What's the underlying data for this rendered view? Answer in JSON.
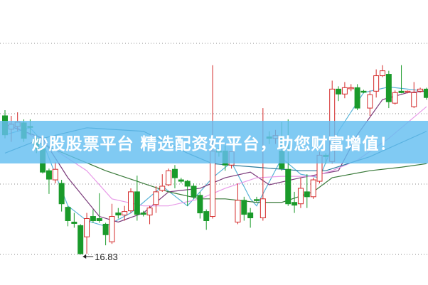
{
  "banner": {
    "text": "炒股股票平台 精选配资好平台，助您财富增值！"
  },
  "colors": {
    "up": "#d42a2a",
    "down": "#1a9a2a",
    "grid": "#888888",
    "banner": "#64bef0"
  },
  "chart_data": {
    "type": "candlestick",
    "title": "",
    "grid": true,
    "ylim": [
      16.5,
      20.4
    ],
    "gridlines": [
      16.83,
      17.83,
      18.83,
      19.83
    ],
    "low_annotation": {
      "index": 12,
      "value": 16.83,
      "label": "16.83"
    },
    "candles_ohlc": [
      [
        18.8,
        18.88,
        18.48,
        18.53
      ],
      [
        18.61,
        18.8,
        18.43,
        18.68
      ],
      [
        18.65,
        18.85,
        18.58,
        18.71
      ],
      [
        18.7,
        18.75,
        18.43,
        18.48
      ],
      [
        18.65,
        18.75,
        18.53,
        18.64
      ],
      [
        18.48,
        18.53,
        18.27,
        18.33
      ],
      [
        18.33,
        18.38,
        17.98,
        18.0
      ],
      [
        18.02,
        18.05,
        17.69,
        17.9
      ],
      [
        17.89,
        18.14,
        17.84,
        18.04
      ],
      [
        17.84,
        17.89,
        17.44,
        17.55
      ],
      [
        17.5,
        17.52,
        17.23,
        17.31
      ],
      [
        17.29,
        17.42,
        17.21,
        17.27
      ],
      [
        17.24,
        17.26,
        16.83,
        16.84
      ],
      [
        17.08,
        17.42,
        16.84,
        17.34
      ],
      [
        17.37,
        17.47,
        17.28,
        17.31
      ],
      [
        17.34,
        17.7,
        17.28,
        17.31
      ],
      [
        17.26,
        17.28,
        16.96,
        17.11
      ],
      [
        17.01,
        17.55,
        16.98,
        17.37
      ],
      [
        17.42,
        17.49,
        17.34,
        17.39
      ],
      [
        17.39,
        17.52,
        17.31,
        17.44
      ],
      [
        17.45,
        17.77,
        17.42,
        17.72
      ],
      [
        17.72,
        17.95,
        17.31,
        17.4
      ],
      [
        17.42,
        17.45,
        17.37,
        17.4
      ],
      [
        17.39,
        17.52,
        17.26,
        17.49
      ],
      [
        17.54,
        17.8,
        17.42,
        17.72
      ],
      [
        17.74,
        17.97,
        17.72,
        17.8
      ],
      [
        17.82,
        18.05,
        17.8,
        18.02
      ],
      [
        18.04,
        18.1,
        17.77,
        17.92
      ],
      [
        17.89,
        17.92,
        17.84,
        17.87
      ],
      [
        17.87,
        17.89,
        17.52,
        17.8
      ],
      [
        17.8,
        17.84,
        17.62,
        17.65
      ],
      [
        17.67,
        17.72,
        17.34,
        17.42
      ],
      [
        17.44,
        17.47,
        17.18,
        17.31
      ],
      [
        17.37,
        19.52,
        17.34,
        18.3
      ],
      [
        18.3,
        18.34,
        18.22,
        18.29
      ],
      [
        18.3,
        18.38,
        18.02,
        18.1
      ],
      [
        18.1,
        18.29,
        18.05,
        18.29
      ],
      [
        17.29,
        17.84,
        17.26,
        17.6
      ],
      [
        17.6,
        17.65,
        17.31,
        17.4
      ],
      [
        17.42,
        17.49,
        17.21,
        17.35
      ],
      [
        17.61,
        17.65,
        17.57,
        17.6
      ],
      [
        17.35,
        18.91,
        17.31,
        17.62
      ],
      [
        18.5,
        18.58,
        18.4,
        18.48
      ],
      [
        18.48,
        18.6,
        18.4,
        18.52
      ],
      [
        18.3,
        18.71,
        18.02,
        18.05
      ],
      [
        18.04,
        18.75,
        17.52,
        17.55
      ],
      [
        17.57,
        17.72,
        17.42,
        17.53
      ],
      [
        17.55,
        17.92,
        17.49,
        17.77
      ],
      [
        17.72,
        17.97,
        17.49,
        17.65
      ],
      [
        17.65,
        17.92,
        17.62,
        17.89
      ],
      [
        17.87,
        18.29,
        17.84,
        18.24
      ],
      [
        18.24,
        18.27,
        18.12,
        18.22
      ],
      [
        18.15,
        19.3,
        18.12,
        19.18
      ],
      [
        19.18,
        19.22,
        19.01,
        19.11
      ],
      [
        19.11,
        19.28,
        19.05,
        19.2
      ],
      [
        19.19,
        19.25,
        19.15,
        19.2
      ],
      [
        19.2,
        19.25,
        18.88,
        18.91
      ],
      [
        19.15,
        19.17,
        19.12,
        19.14
      ],
      [
        18.91,
        19.16,
        18.8,
        19.1
      ],
      [
        19.15,
        19.46,
        19.06,
        19.37
      ],
      [
        19.37,
        19.52,
        19.35,
        19.44
      ],
      [
        19.39,
        19.44,
        18.91,
        19.0
      ],
      [
        18.98,
        19.16,
        18.96,
        19.13
      ],
      [
        19.15,
        19.52,
        19.12,
        19.13
      ],
      [
        19.14,
        19.16,
        19.12,
        19.15
      ],
      [
        18.93,
        19.28,
        18.91,
        19.13
      ],
      [
        19.15,
        19.2,
        19.13,
        19.18
      ],
      [
        19.18,
        19.2,
        19.03,
        19.06
      ]
    ],
    "moving_averages": [
      {
        "color": "#5ab4d8",
        "points": [
          [
            0,
            18.53
          ],
          [
            4,
            18.63
          ],
          [
            6,
            18.43
          ],
          [
            8,
            17.97
          ],
          [
            10,
            17.52
          ],
          [
            13,
            17.31
          ],
          [
            16,
            17.23
          ],
          [
            20,
            17.42
          ],
          [
            22,
            17.57
          ],
          [
            25,
            17.8
          ],
          [
            29,
            17.52
          ],
          [
            33,
            17.92
          ],
          [
            36,
            18.14
          ],
          [
            39,
            17.62
          ],
          [
            40,
            17.52
          ],
          [
            44,
            18.2
          ],
          [
            47,
            17.97
          ],
          [
            50,
            17.92
          ],
          [
            53,
            18.58
          ],
          [
            57,
            19.13
          ],
          [
            61,
            19.21
          ],
          [
            67,
            19.15
          ]
        ]
      },
      {
        "color": "#7a3a7a",
        "points": [
          [
            0,
            18.68
          ],
          [
            6,
            18.48
          ],
          [
            10,
            17.92
          ],
          [
            15,
            17.37
          ],
          [
            18,
            17.29
          ],
          [
            22,
            17.42
          ],
          [
            26,
            17.72
          ],
          [
            31,
            17.77
          ],
          [
            35,
            17.92
          ],
          [
            39,
            18.0
          ],
          [
            42,
            17.82
          ],
          [
            47,
            17.92
          ],
          [
            50,
            17.97
          ],
          [
            53,
            18.02
          ],
          [
            56,
            18.53
          ],
          [
            60,
            19.03
          ],
          [
            64,
            19.13
          ],
          [
            67,
            19.15
          ]
        ]
      },
      {
        "color": "#e89ae8",
        "points": [
          [
            0,
            18.73
          ],
          [
            6,
            18.43
          ],
          [
            13,
            18.02
          ],
          [
            17,
            17.62
          ],
          [
            22,
            17.52
          ],
          [
            26,
            17.52
          ],
          [
            31,
            17.62
          ],
          [
            35,
            17.77
          ],
          [
            40,
            17.92
          ],
          [
            44,
            17.94
          ],
          [
            49,
            17.94
          ],
          [
            52,
            18.02
          ],
          [
            56,
            18.17
          ],
          [
            61,
            18.48
          ],
          [
            67,
            18.93
          ]
        ]
      },
      {
        "color": "#3a7a3a",
        "points": [
          [
            5,
            18.43
          ],
          [
            16,
            18.02
          ],
          [
            22,
            17.84
          ],
          [
            26,
            17.72
          ],
          [
            31,
            17.62
          ],
          [
            35,
            17.62
          ],
          [
            40,
            17.57
          ],
          [
            44,
            17.57
          ],
          [
            49,
            17.72
          ],
          [
            52,
            17.92
          ],
          [
            58,
            18.02
          ],
          [
            63,
            18.07
          ],
          [
            67,
            18.12
          ]
        ]
      },
      {
        "color": "#2a7a9a",
        "points": [
          [
            0,
            18.27
          ],
          [
            6,
            18.48
          ],
          [
            13,
            18.63
          ],
          [
            22,
            18.58
          ],
          [
            29,
            18.27
          ],
          [
            33,
            18.12
          ],
          [
            40,
            18.07
          ],
          [
            47,
            18.02
          ],
          [
            51,
            18.02
          ],
          [
            58,
            18.22
          ],
          [
            67,
            18.58
          ]
        ]
      }
    ]
  }
}
